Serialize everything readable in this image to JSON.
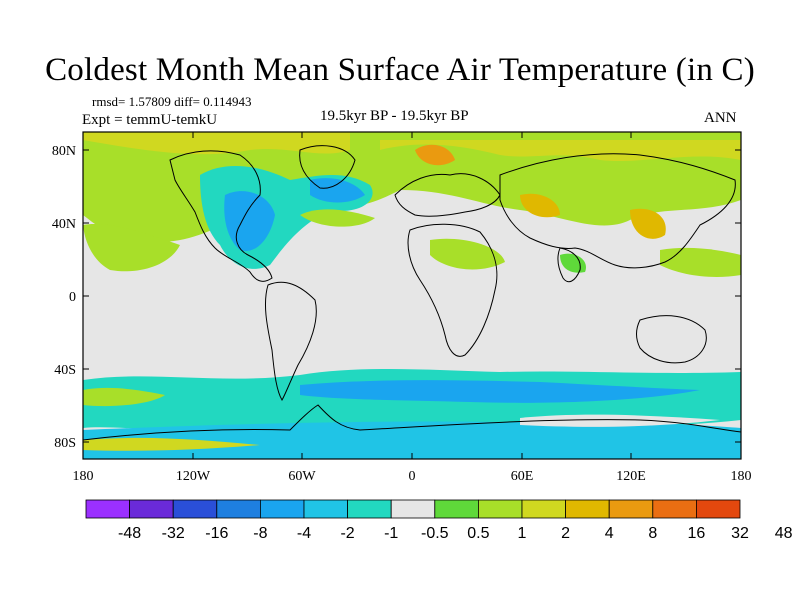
{
  "title": "Coldest Month Mean Surface Air Temperature (in C)",
  "stats": {
    "line1": "rmsd= 1.57809 diff= 0.114943",
    "expt": "Expt = temmU-temkU"
  },
  "center_label": "19.5kyr BP - 19.5kyr BP",
  "right_label": "ANN",
  "axes": {
    "lat_ticks": [
      "80N",
      "40N",
      "0",
      "40S",
      "80S"
    ],
    "lon_ticks": [
      "180",
      "120W",
      "60W",
      "0",
      "60E",
      "120E",
      "180"
    ]
  },
  "colorbar": {
    "colors": [
      "#9b30ff",
      "#6a2ad9",
      "#2a4fd8",
      "#1e7fe0",
      "#1aa5ef",
      "#20c4e6",
      "#22d8c0",
      "#e6e6e6",
      "#5fd93a",
      "#a8df29",
      "#d0d820",
      "#e0b800",
      "#ea9a10",
      "#ea6e12",
      "#e3480e"
    ],
    "labels": [
      "-48",
      "-32",
      "-16",
      "-8",
      "-4",
      "-2",
      "-1",
      "-0.5",
      "0.5",
      "1",
      "2",
      "4",
      "8",
      "16",
      "32",
      "48"
    ]
  },
  "map_colors": {
    "background": "#e6e6e6",
    "coast": "#000000"
  }
}
